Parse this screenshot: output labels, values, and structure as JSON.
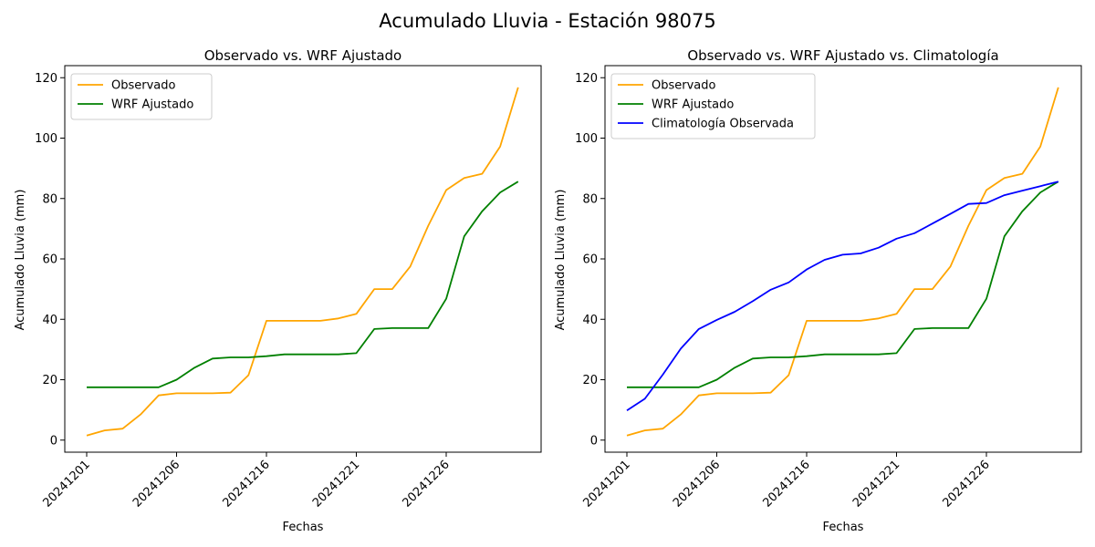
{
  "figure": {
    "suptitle": "Acumulado Lluvia - Estación 98075"
  },
  "chart_data": [
    {
      "type": "line",
      "title": "Observado vs. WRF Ajustado",
      "xlabel": "Fechas",
      "ylabel": "Acumulado Lluvia (mm)",
      "ylim": [
        -4,
        124
      ],
      "yticks": [
        0,
        20,
        40,
        60,
        80,
        100,
        120
      ],
      "xticklabels": [
        "20241201",
        "20241206",
        "20241216",
        "20241221",
        "20241226"
      ],
      "grid": false,
      "legend": "upper-left",
      "series": [
        {
          "name": "Observado",
          "color": "#ffa500",
          "values": [
            1.5,
            3.2,
            3.8,
            8.5,
            14.8,
            15.5,
            15.5,
            15.5,
            15.7,
            21.5,
            39.5,
            39.5,
            39.5,
            39.5,
            40.3,
            41.8,
            50.0,
            50.0,
            57.5,
            71.0,
            82.8,
            86.8,
            88.2,
            97.2,
            116.8
          ]
        },
        {
          "name": "WRF Ajustado",
          "color": "#008000",
          "values": [
            17.5,
            17.5,
            17.5,
            17.5,
            17.5,
            20.0,
            24.0,
            27.0,
            27.4,
            27.4,
            27.8,
            28.4,
            28.4,
            28.4,
            28.4,
            28.8,
            36.8,
            37.1,
            37.1,
            37.1,
            46.8,
            67.5,
            75.8,
            82.0,
            85.6
          ]
        }
      ]
    },
    {
      "type": "line",
      "title": "Observado vs. WRF Ajustado vs. Climatología",
      "xlabel": "Fechas",
      "ylabel": "Acumulado Lluvia (mm)",
      "ylim": [
        -4,
        124
      ],
      "yticks": [
        0,
        20,
        40,
        60,
        80,
        100,
        120
      ],
      "xticklabels": [
        "20241201",
        "20241206",
        "20241216",
        "20241221",
        "20241226"
      ],
      "grid": false,
      "legend": "upper-left",
      "series": [
        {
          "name": "Observado",
          "color": "#ffa500",
          "values": [
            1.5,
            3.2,
            3.8,
            8.5,
            14.8,
            15.5,
            15.5,
            15.5,
            15.7,
            21.5,
            39.5,
            39.5,
            39.5,
            39.5,
            40.3,
            41.8,
            50.0,
            50.0,
            57.5,
            71.0,
            82.8,
            86.8,
            88.2,
            97.2,
            116.8
          ]
        },
        {
          "name": "WRF Ajustado",
          "color": "#008000",
          "values": [
            17.5,
            17.5,
            17.5,
            17.5,
            17.5,
            20.0,
            24.0,
            27.0,
            27.4,
            27.4,
            27.8,
            28.4,
            28.4,
            28.4,
            28.4,
            28.8,
            36.8,
            37.1,
            37.1,
            37.1,
            46.8,
            67.5,
            75.8,
            82.0,
            85.6
          ]
        },
        {
          "name": "Climatología Observada",
          "color": "#0000ff",
          "values": [
            9.8,
            13.7,
            21.7,
            30.3,
            36.8,
            39.8,
            42.5,
            46.0,
            49.8,
            52.2,
            56.5,
            59.7,
            61.4,
            61.8,
            63.7,
            66.7,
            68.5,
            71.7,
            74.9,
            78.2,
            78.5,
            81.1,
            82.6,
            84.1,
            85.6
          ]
        }
      ]
    }
  ]
}
